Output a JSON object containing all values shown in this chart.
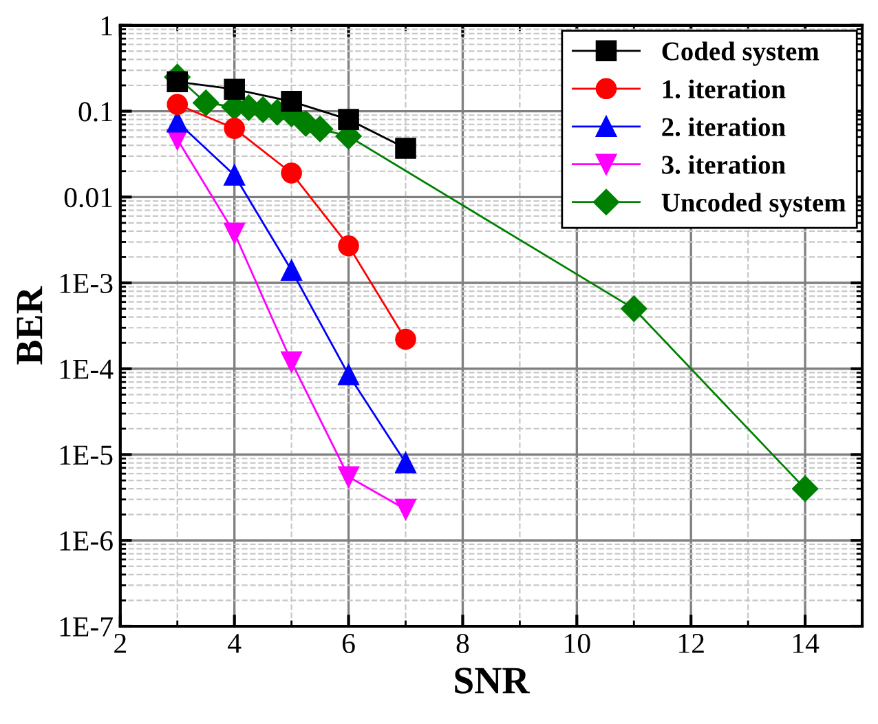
{
  "chart_data": {
    "type": "line",
    "xlabel": "SNR",
    "ylabel": "BER",
    "log": "y",
    "xlim": [
      2,
      15
    ],
    "xticks": [
      2,
      4,
      6,
      8,
      10,
      12,
      14
    ],
    "ylim": [
      1e-07,
      1
    ],
    "yticks": [
      {
        "value": 1e-07,
        "label": "1E-7"
      },
      {
        "value": 1e-06,
        "label": "1E-6"
      },
      {
        "value": 1e-05,
        "label": "1E-5"
      },
      {
        "value": 0.0001,
        "label": "1E-4"
      },
      {
        "value": 0.001,
        "label": "1E-3"
      },
      {
        "value": 0.01,
        "label": "0.01"
      },
      {
        "value": 0.1,
        "label": "0.1"
      },
      {
        "value": 1,
        "label": "1"
      }
    ],
    "grid": true,
    "legend": "top right",
    "series": [
      {
        "name": "Coded system",
        "color": "#000000",
        "marker": "square",
        "x": [
          3,
          4,
          5,
          6,
          7
        ],
        "values": [
          0.22,
          0.18,
          0.13,
          0.08,
          0.037
        ]
      },
      {
        "name": "1. iteration",
        "color": "#ff0000",
        "marker": "circle",
        "x": [
          3,
          4,
          5,
          6,
          7
        ],
        "values": [
          0.12,
          0.063,
          0.019,
          0.0027,
          0.00022
        ]
      },
      {
        "name": "2. iteration",
        "color": "#0000ff",
        "marker": "triangle",
        "x": [
          3,
          4,
          5,
          6,
          7
        ],
        "values": [
          0.075,
          0.018,
          0.0014,
          8.5e-05,
          8e-06
        ]
      },
      {
        "name": "3. iteration",
        "color": "#ff00ff",
        "marker": "triangle_down",
        "x": [
          3,
          4,
          5,
          6,
          7
        ],
        "values": [
          0.047,
          0.0038,
          0.00012,
          5.5e-06,
          2.3e-06
        ]
      },
      {
        "name": "Uncoded system",
        "color": "#008000",
        "marker": "diamond",
        "x": [
          3,
          3.5,
          4,
          4.25,
          4.5,
          4.75,
          5,
          5.25,
          5.5,
          6,
          11,
          14
        ],
        "values": [
          0.25,
          0.125,
          0.112,
          0.11,
          0.104,
          0.097,
          0.093,
          0.072,
          0.062,
          0.051,
          0.0005,
          4e-06
        ]
      }
    ]
  }
}
